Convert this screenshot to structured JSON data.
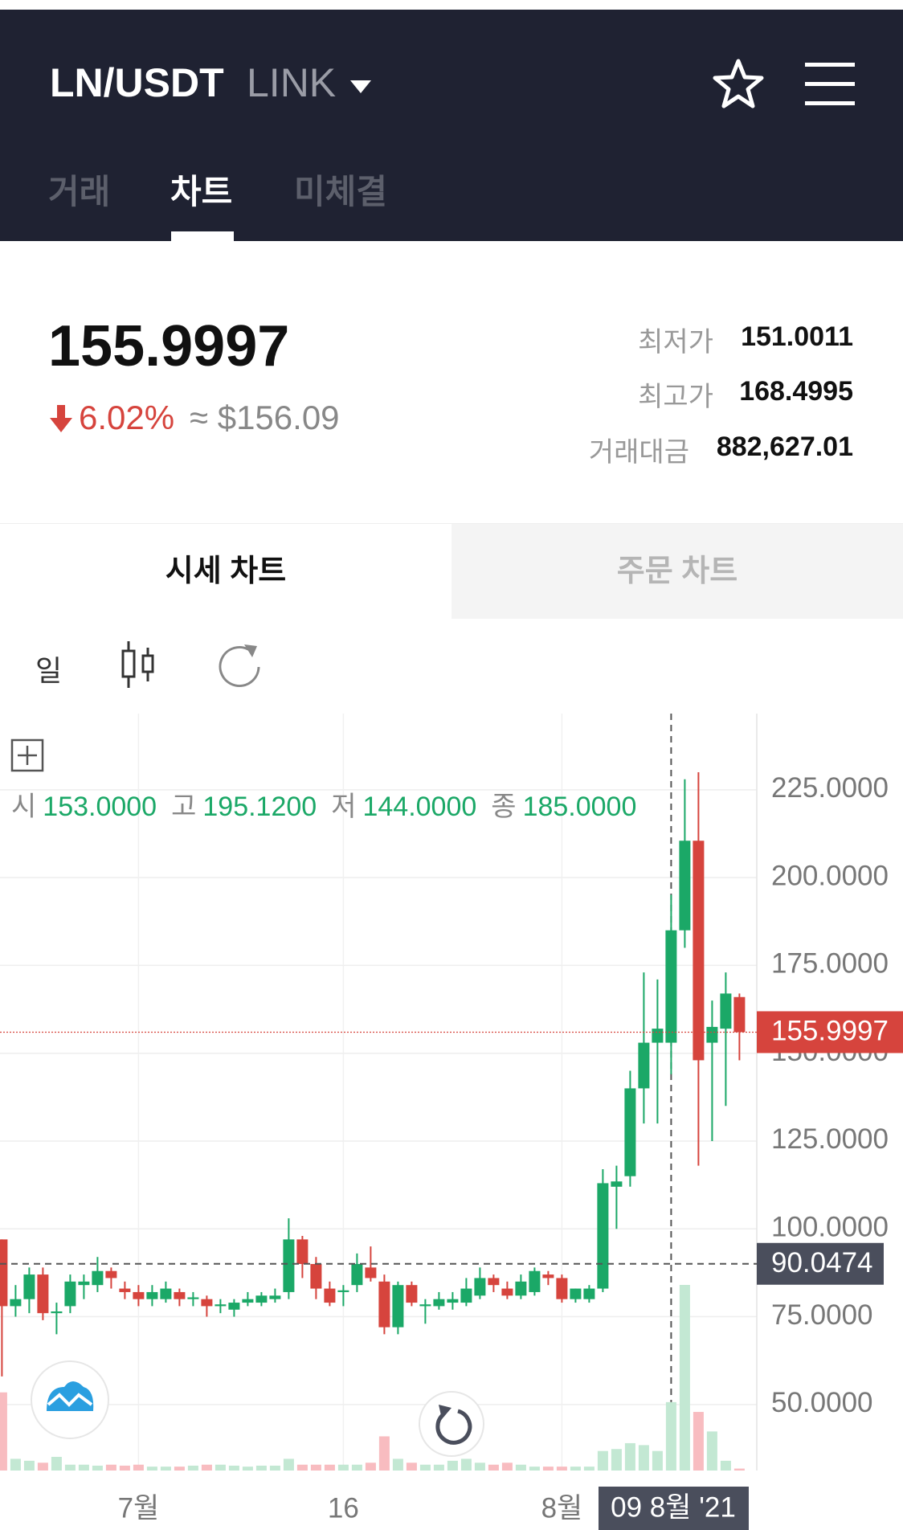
{
  "header": {
    "pair": "LN/USDT",
    "name": "LINK",
    "tabs": [
      "거래",
      "차트",
      "미체결"
    ]
  },
  "ticker": {
    "price": "155.9997",
    "change": "6.02%",
    "usd": "≈ $156.09",
    "stats": [
      {
        "label": "최저가",
        "value": "151.0011"
      },
      {
        "label": "최고가",
        "value": "168.4995"
      },
      {
        "label": "거래대금",
        "value": "882,627.01"
      }
    ]
  },
  "chart_tabs": [
    "시세 차트",
    "주문 차트"
  ],
  "toolbar": {
    "interval": "일"
  },
  "chart_data": {
    "type": "candlestick",
    "ohlc_legend": [
      {
        "label": "시",
        "value": "153.0000"
      },
      {
        "label": "고",
        "value": "195.1200"
      },
      {
        "label": "저",
        "value": "144.0000"
      },
      {
        "label": "종",
        "value": "185.0000"
      }
    ],
    "categories": [
      null,
      null,
      null,
      null,
      null,
      null,
      null,
      null,
      null,
      null,
      "7월",
      null,
      null,
      null,
      null,
      null,
      null,
      null,
      null,
      null,
      null,
      null,
      null,
      null,
      null,
      "16",
      null,
      null,
      null,
      null,
      null,
      null,
      null,
      null,
      null,
      null,
      null,
      null,
      null,
      null,
      null,
      "8월",
      null,
      null,
      null,
      null,
      null,
      null,
      null,
      "09 8월 '21",
      null,
      null,
      null,
      null,
      null
    ],
    "open": [
      97,
      78,
      80,
      87,
      76,
      78,
      84,
      84,
      88,
      83,
      82,
      80,
      80,
      82,
      80,
      80,
      78,
      77,
      79,
      79,
      80,
      82,
      97,
      90,
      83,
      82,
      84,
      89,
      85,
      72,
      84,
      78,
      78,
      79,
      79,
      81,
      86,
      83,
      81,
      82,
      87,
      86,
      80,
      80,
      83,
      112,
      115,
      140,
      153,
      153,
      185,
      210.5,
      153,
      157,
      166
    ],
    "high": [
      97,
      84,
      89,
      89,
      79,
      87,
      87,
      92,
      89,
      85,
      84,
      84,
      85,
      83,
      82,
      81,
      80,
      80,
      82,
      82,
      83,
      103,
      98,
      92,
      85,
      84,
      93,
      95,
      87,
      85,
      85,
      80,
      82,
      82,
      86,
      89,
      87,
      85,
      87,
      89,
      88,
      87,
      83,
      84,
      117,
      118,
      145,
      173,
      171,
      195.12,
      228,
      230,
      165,
      173,
      167
    ],
    "low": [
      58,
      75,
      76,
      74,
      70,
      76,
      80,
      82,
      83,
      80,
      78,
      78,
      79,
      78,
      78,
      75,
      76,
      75,
      78,
      78,
      79,
      80,
      86,
      80,
      78,
      78,
      82,
      85,
      70,
      70,
      78,
      73,
      77,
      77,
      78,
      80,
      82,
      80,
      80,
      81,
      84,
      79,
      79,
      79,
      82,
      100,
      112,
      130,
      130,
      144,
      180,
      118,
      125,
      135,
      148
    ],
    "close": [
      78,
      80,
      87,
      76,
      76.5,
      85,
      85,
      88,
      86,
      82,
      80,
      82,
      83,
      80,
      80.5,
      78,
      78.5,
      79,
      80,
      81,
      81,
      97,
      90,
      83,
      79,
      82.5,
      90,
      86,
      72,
      84,
      79,
      78.5,
      80,
      80,
      83,
      86,
      84,
      81,
      85,
      88,
      86,
      80,
      83,
      83,
      113,
      113.5,
      140,
      153,
      157,
      185,
      210.5,
      148,
      157.5,
      167,
      155.9997
    ],
    "volume": [
      80,
      12,
      10,
      8,
      14,
      6,
      6,
      5,
      6,
      5,
      6,
      4,
      4,
      4,
      5,
      6,
      6,
      5,
      4,
      5,
      5,
      12,
      6,
      6,
      6,
      6,
      6,
      8,
      35,
      12,
      8,
      6,
      6,
      10,
      12,
      8,
      6,
      8,
      6,
      4,
      4,
      4,
      4,
      4,
      20,
      22,
      28,
      26,
      20,
      70,
      190,
      60,
      40,
      10,
      2
    ],
    "ylim": [
      31.2,
      246.7
    ],
    "yticks": [
      {
        "value": 50,
        "label": "50.0000"
      },
      {
        "value": 75,
        "label": "75.0000"
      },
      {
        "value": 100,
        "label": "100.0000"
      },
      {
        "value": 125,
        "label": "125.0000"
      },
      {
        "value": 150,
        "label": "150.0000"
      },
      {
        "value": 175,
        "label": "175.0000"
      },
      {
        "value": 200,
        "label": "200.0000"
      },
      {
        "value": 225,
        "label": "225.0000"
      }
    ],
    "last_price": 155.9997,
    "crosshair": 90.0474,
    "up_color": "#1ba867",
    "down_color": "#d6443d",
    "volume_up_color": "#c3e8d3",
    "volume_down_color": "#f8bcc0"
  }
}
